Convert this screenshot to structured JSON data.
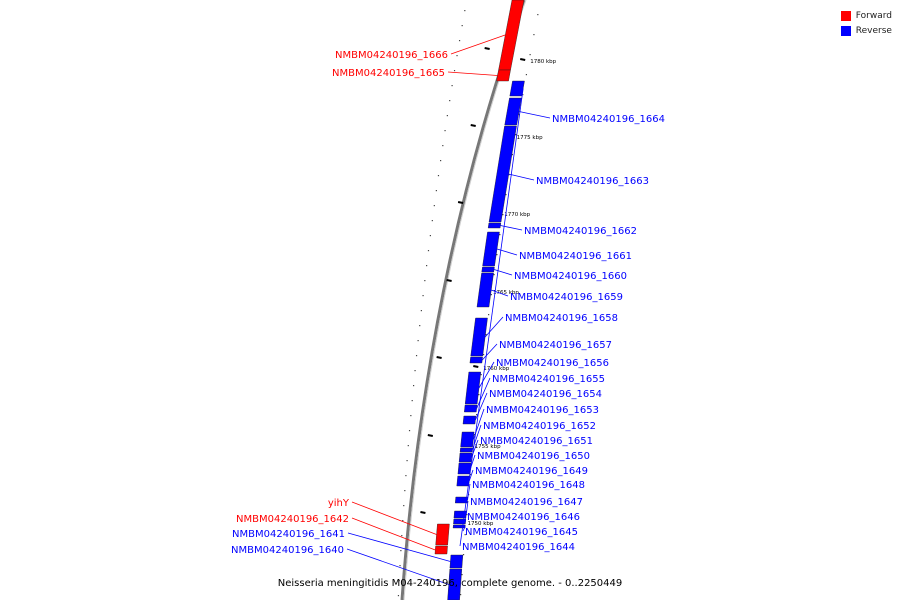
{
  "caption": "Neisseria meningitidis M04-240196, complete genome. - 0..2250449",
  "legend": [
    {
      "label": "Forward",
      "color": "#ff0000"
    },
    {
      "label": "Reverse",
      "color": "#0000ff"
    }
  ],
  "colors": {
    "forward": "#ff0000",
    "reverse": "#0000ff",
    "backbone": "#888888",
    "tick": "#000000"
  },
  "ticks": [
    {
      "label": "1780 kbp"
    },
    {
      "label": "1775 kbp"
    },
    {
      "label": "1770 kbp"
    },
    {
      "label": "1765 kbp"
    },
    {
      "label": "1760 kbp"
    },
    {
      "label": "1755 kbp"
    },
    {
      "label": "1750 kbp"
    }
  ],
  "genes": [
    {
      "label": "NMBM04240196_1666",
      "strand": "forward"
    },
    {
      "label": "NMBM04240196_1665",
      "strand": "forward"
    },
    {
      "label": "NMBM04240196_1664",
      "strand": "reverse"
    },
    {
      "label": "NMBM04240196_1663",
      "strand": "reverse"
    },
    {
      "label": "NMBM04240196_1662",
      "strand": "reverse"
    },
    {
      "label": "NMBM04240196_1661",
      "strand": "reverse"
    },
    {
      "label": "NMBM04240196_1660",
      "strand": "reverse"
    },
    {
      "label": "NMBM04240196_1659",
      "strand": "reverse"
    },
    {
      "label": "NMBM04240196_1658",
      "strand": "reverse"
    },
    {
      "label": "NMBM04240196_1657",
      "strand": "reverse"
    },
    {
      "label": "NMBM04240196_1656",
      "strand": "reverse"
    },
    {
      "label": "NMBM04240196_1655",
      "strand": "reverse"
    },
    {
      "label": "NMBM04240196_1654",
      "strand": "reverse"
    },
    {
      "label": "NMBM04240196_1653",
      "strand": "reverse"
    },
    {
      "label": "NMBM04240196_1652",
      "strand": "reverse"
    },
    {
      "label": "NMBM04240196_1651",
      "strand": "reverse"
    },
    {
      "label": "NMBM04240196_1650",
      "strand": "reverse"
    },
    {
      "label": "NMBM04240196_1649",
      "strand": "reverse"
    },
    {
      "label": "NMBM04240196_1648",
      "strand": "reverse"
    },
    {
      "label": "NMBM04240196_1647",
      "strand": "reverse"
    },
    {
      "label": "NMBM04240196_1646",
      "strand": "reverse"
    },
    {
      "label": "NMBM04240196_1645",
      "strand": "reverse"
    },
    {
      "label": "NMBM04240196_1644",
      "strand": "reverse"
    },
    {
      "label": "yihY",
      "strand": "forward"
    },
    {
      "label": "NMBM04240196_1642",
      "strand": "forward"
    },
    {
      "label": "NMBM04240196_1641",
      "strand": "reverse"
    },
    {
      "label": "NMBM04240196_1640",
      "strand": "reverse"
    }
  ]
}
